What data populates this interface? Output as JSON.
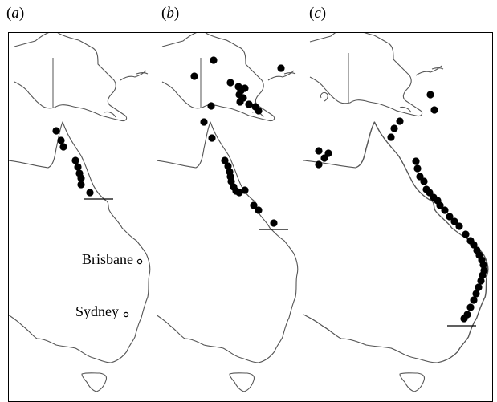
{
  "panels": [
    {
      "id": "a",
      "letter": "a",
      "points": [
        [
          70,
          163
        ],
        [
          76,
          175
        ],
        [
          79,
          183
        ],
        [
          94,
          200
        ],
        [
          97,
          208
        ],
        [
          99,
          216
        ],
        [
          101,
          222
        ],
        [
          101,
          230
        ],
        [
          112,
          240
        ]
      ]
    },
    {
      "id": "b",
      "letter": "b",
      "points": [
        [
          266,
          75
        ],
        [
          350,
          85
        ],
        [
          242,
          95
        ],
        [
          287,
          103
        ],
        [
          297,
          108
        ],
        [
          300,
          113
        ],
        [
          298,
          118
        ],
        [
          305,
          110
        ],
        [
          303,
          122
        ],
        [
          310,
          130
        ],
        [
          318,
          133
        ],
        [
          322,
          138
        ],
        [
          299,
          127
        ],
        [
          263,
          132
        ],
        [
          254,
          152
        ],
        [
          264,
          172
        ],
        [
          280,
          200
        ],
        [
          284,
          207
        ],
        [
          286,
          214
        ],
        [
          287,
          220
        ],
        [
          288,
          226
        ],
        [
          291,
          233
        ],
        [
          294,
          238
        ],
        [
          298,
          240
        ],
        [
          305,
          237
        ],
        [
          316,
          256
        ],
        [
          322,
          262
        ],
        [
          341,
          278
        ]
      ]
    },
    {
      "id": "c",
      "letter": "c",
      "points": [
        [
          536,
          118
        ],
        [
          541,
          137
        ],
        [
          498,
          151
        ],
        [
          491,
          160
        ],
        [
          487,
          171
        ],
        [
          397,
          188
        ],
        [
          409,
          191
        ],
        [
          404,
          197
        ],
        [
          397,
          205
        ],
        [
          518,
          201
        ],
        [
          520,
          210
        ],
        [
          523,
          220
        ],
        [
          528,
          226
        ],
        [
          531,
          236
        ],
        [
          535,
          240
        ],
        [
          540,
          246
        ],
        [
          545,
          250
        ],
        [
          548,
          256
        ],
        [
          554,
          262
        ],
        [
          560,
          270
        ],
        [
          566,
          276
        ],
        [
          572,
          282
        ],
        [
          580,
          292
        ],
        [
          586,
          300
        ],
        [
          590,
          305
        ],
        [
          594,
          312
        ],
        [
          597,
          318
        ],
        [
          600,
          324
        ],
        [
          602,
          330
        ],
        [
          603,
          337
        ],
        [
          601,
          343
        ],
        [
          599,
          350
        ],
        [
          596,
          358
        ],
        [
          593,
          366
        ],
        [
          590,
          374
        ],
        [
          586,
          383
        ],
        [
          582,
          392
        ],
        [
          578,
          397
        ]
      ]
    }
  ],
  "cities": [
    {
      "name": "Brisbane",
      "label": "Brisbane"
    },
    {
      "name": "Sydney",
      "label": "Sydney"
    }
  ]
}
